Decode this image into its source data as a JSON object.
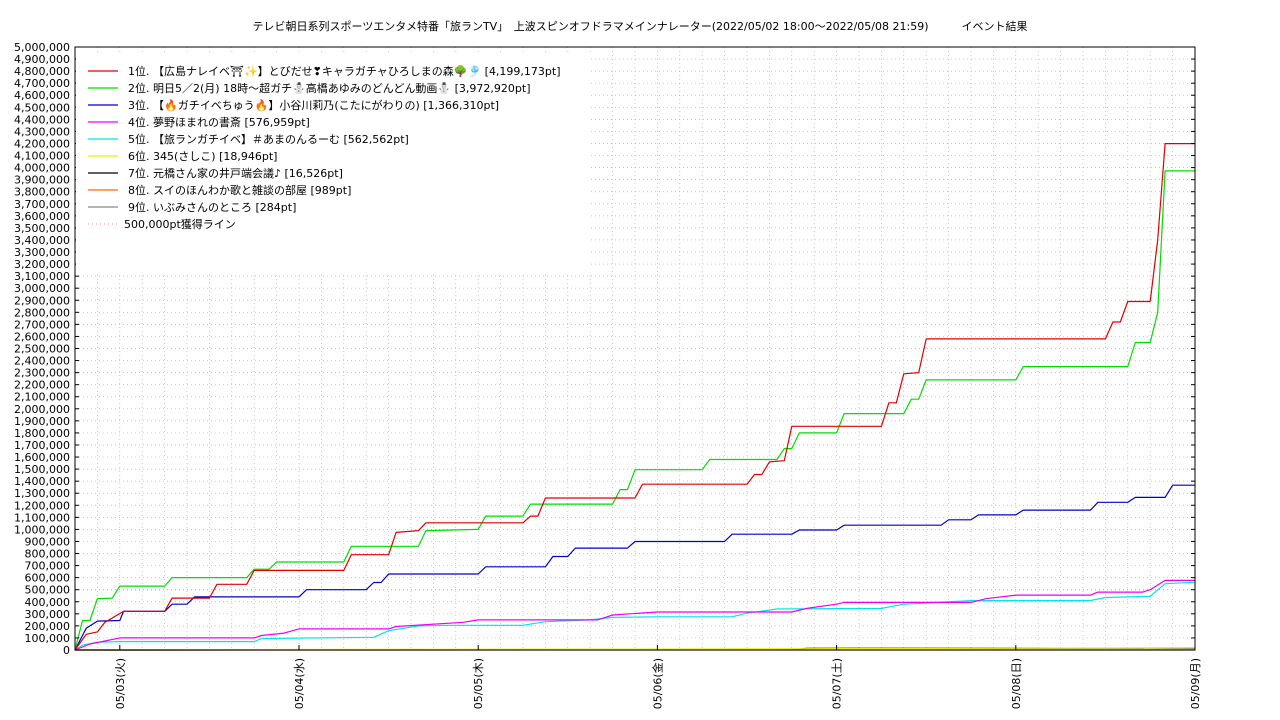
{
  "chart_data": {
    "type": "line",
    "title": "テレビ朝日系列スポーツエンタメ特番「旅ランTV」　上波スピンオフドラマメインナレーター(2022/05/02 18:00〜2022/05/08 21:59)　　　イベント結果",
    "ylim": [
      0,
      5000000
    ],
    "xlim": [
      "2022-05-02 18:00",
      "2022-05-09 00:00"
    ],
    "yticks": [
      0,
      100000,
      200000,
      300000,
      400000,
      500000,
      600000,
      700000,
      800000,
      900000,
      1000000,
      1100000,
      1200000,
      1300000,
      1400000,
      1500000,
      1600000,
      1700000,
      1800000,
      1900000,
      2000000,
      2100000,
      2200000,
      2300000,
      2400000,
      2500000,
      2600000,
      2700000,
      2800000,
      2900000,
      3000000,
      3100000,
      3200000,
      3300000,
      3400000,
      3500000,
      3600000,
      3700000,
      3800000,
      3900000,
      4000000,
      4100000,
      4200000,
      4300000,
      4400000,
      4500000,
      4600000,
      4700000,
      4800000,
      4900000,
      5000000
    ],
    "ytick_labels": [
      "0",
      "100,000",
      "200,000",
      "300,000",
      "400,000",
      "500,000",
      "600,000",
      "700,000",
      "800,000",
      "900,000",
      "1,000,000",
      "1,100,000",
      "1,200,000",
      "1,300,000",
      "1,400,000",
      "1,500,000",
      "1,600,000",
      "1,700,000",
      "1,800,000",
      "1,900,000",
      "2,000,000",
      "2,100,000",
      "2,200,000",
      "2,300,000",
      "2,400,000",
      "2,500,000",
      "2,600,000",
      "2,700,000",
      "2,800,000",
      "2,900,000",
      "3,000,000",
      "3,100,000",
      "3,200,000",
      "3,300,000",
      "3,400,000",
      "3,500,000",
      "3,600,000",
      "3,700,000",
      "3,800,000",
      "3,900,000",
      "4,000,000",
      "4,100,000",
      "4,200,000",
      "4,300,000",
      "4,400,000",
      "4,500,000",
      "4,600,000",
      "4,700,000",
      "4,800,000",
      "4,900,000",
      "5,000,000"
    ],
    "xticks": [
      {
        "label": "05/03(火)",
        "x": "2022-05-03 00:00"
      },
      {
        "label": "05/04(水)",
        "x": "2022-05-04 00:00"
      },
      {
        "label": "05/05(木)",
        "x": "2022-05-05 00:00"
      },
      {
        "label": "05/06(金)",
        "x": "2022-05-06 00:00"
      },
      {
        "label": "05/07(土)",
        "x": "2022-05-07 00:00"
      },
      {
        "label": "05/08(日)",
        "x": "2022-05-08 00:00"
      },
      {
        "label": "05/09(月)",
        "x": "2022-05-09 00:00"
      }
    ],
    "grid": true,
    "legend_position": "top-left",
    "threshold": {
      "name": "500,000pt獲得ライン",
      "value": 500000,
      "color": "#ff8080"
    },
    "series": [
      {
        "name": "1位. 【広島ナレイベ⛩✨】とびだせ❣キャラガチャひろしまの森🌳🎐 [4,199,173pt]",
        "color": "#e00000",
        "points": [
          [
            "2022-05-02 18:00",
            0
          ],
          [
            "2022-05-02 19:30",
            130000
          ],
          [
            "2022-05-02 21:00",
            150000
          ],
          [
            "2022-05-02 22:00",
            230000
          ],
          [
            "2022-05-03 00:30",
            320000
          ],
          [
            "2022-05-03 06:00",
            320000
          ],
          [
            "2022-05-03 07:00",
            430000
          ],
          [
            "2022-05-03 12:00",
            430000
          ],
          [
            "2022-05-03 13:00",
            545000
          ],
          [
            "2022-05-03 17:00",
            545000
          ],
          [
            "2022-05-03 18:00",
            660000
          ],
          [
            "2022-05-04 06:00",
            660000
          ],
          [
            "2022-05-04 07:00",
            790000
          ],
          [
            "2022-05-04 12:00",
            790000
          ],
          [
            "2022-05-04 13:00",
            975000
          ],
          [
            "2022-05-04 16:00",
            990000
          ],
          [
            "2022-05-04 17:00",
            1055000
          ],
          [
            "2022-05-05 06:00",
            1055000
          ],
          [
            "2022-05-05 07:00",
            1110000
          ],
          [
            "2022-05-05 08:00",
            1110000
          ],
          [
            "2022-05-05 09:00",
            1260000
          ],
          [
            "2022-05-05 21:00",
            1260000
          ],
          [
            "2022-05-05 22:00",
            1375000
          ],
          [
            "2022-05-06 12:00",
            1375000
          ],
          [
            "2022-05-06 13:00",
            1455000
          ],
          [
            "2022-05-06 14:00",
            1455000
          ],
          [
            "2022-05-06 15:00",
            1560000
          ],
          [
            "2022-05-06 17:00",
            1570000
          ],
          [
            "2022-05-06 18:00",
            1855000
          ],
          [
            "2022-05-07 06:00",
            1855000
          ],
          [
            "2022-05-07 07:00",
            2050000
          ],
          [
            "2022-05-07 08:00",
            2050000
          ],
          [
            "2022-05-07 09:00",
            2290000
          ],
          [
            "2022-05-07 11:00",
            2300000
          ],
          [
            "2022-05-07 12:00",
            2580000
          ],
          [
            "2022-05-08 12:00",
            2580000
          ],
          [
            "2022-05-08 13:00",
            2720000
          ],
          [
            "2022-05-08 14:00",
            2720000
          ],
          [
            "2022-05-08 15:00",
            2890000
          ],
          [
            "2022-05-08 18:00",
            2890000
          ],
          [
            "2022-05-08 19:00",
            3400000
          ],
          [
            "2022-05-08 20:00",
            4199173
          ],
          [
            "2022-05-09 00:00",
            4199173
          ]
        ]
      },
      {
        "name": "2位. 明日5／2(月) 18時〜超ガチ⛄高橋あゆみのどんどん動画⛄ [3,972,920pt]",
        "color": "#00dd00",
        "points": [
          [
            "2022-05-02 18:00",
            0
          ],
          [
            "2022-05-02 19:00",
            245000
          ],
          [
            "2022-05-02 20:00",
            245000
          ],
          [
            "2022-05-02 21:00",
            425000
          ],
          [
            "2022-05-02 23:00",
            430000
          ],
          [
            "2022-05-03 00:00",
            530000
          ],
          [
            "2022-05-03 06:00",
            530000
          ],
          [
            "2022-05-03 07:00",
            600000
          ],
          [
            "2022-05-03 17:00",
            600000
          ],
          [
            "2022-05-03 18:00",
            670000
          ],
          [
            "2022-05-03 20:00",
            670000
          ],
          [
            "2022-05-03 21:00",
            730000
          ],
          [
            "2022-05-04 06:00",
            730000
          ],
          [
            "2022-05-04 07:00",
            860000
          ],
          [
            "2022-05-04 16:00",
            860000
          ],
          [
            "2022-05-04 17:00",
            990000
          ],
          [
            "2022-05-05 00:00",
            1000000
          ],
          [
            "2022-05-05 01:00",
            1110000
          ],
          [
            "2022-05-05 06:00",
            1110000
          ],
          [
            "2022-05-05 07:00",
            1210000
          ],
          [
            "2022-05-05 18:00",
            1210000
          ],
          [
            "2022-05-05 19:00",
            1330000
          ],
          [
            "2022-05-05 20:00",
            1330000
          ],
          [
            "2022-05-05 21:00",
            1495000
          ],
          [
            "2022-05-06 06:00",
            1495000
          ],
          [
            "2022-05-06 07:00",
            1580000
          ],
          [
            "2022-05-06 16:00",
            1580000
          ],
          [
            "2022-05-06 17:00",
            1670000
          ],
          [
            "2022-05-06 18:00",
            1670000
          ],
          [
            "2022-05-06 19:00",
            1800000
          ],
          [
            "2022-05-07 00:00",
            1800000
          ],
          [
            "2022-05-07 01:00",
            1960000
          ],
          [
            "2022-05-07 09:00",
            1960000
          ],
          [
            "2022-05-07 10:00",
            2080000
          ],
          [
            "2022-05-07 11:00",
            2080000
          ],
          [
            "2022-05-07 12:00",
            2240000
          ],
          [
            "2022-05-08 00:00",
            2240000
          ],
          [
            "2022-05-08 01:00",
            2350000
          ],
          [
            "2022-05-08 15:00",
            2350000
          ],
          [
            "2022-05-08 16:00",
            2550000
          ],
          [
            "2022-05-08 18:00",
            2550000
          ],
          [
            "2022-05-08 19:00",
            2800000
          ],
          [
            "2022-05-08 20:00",
            3972920
          ],
          [
            "2022-05-09 00:00",
            3972920
          ]
        ]
      },
      {
        "name": "3位. 【🔥ガチイベちゅう🔥】小谷川莉乃(こたにがわりの) [1,366,310pt]",
        "color": "#0000cc",
        "points": [
          [
            "2022-05-02 18:00",
            0
          ],
          [
            "2022-05-02 19:30",
            180000
          ],
          [
            "2022-05-02 21:00",
            240000
          ],
          [
            "2022-05-03 00:00",
            245000
          ],
          [
            "2022-05-03 00:30",
            320000
          ],
          [
            "2022-05-03 06:00",
            320000
          ],
          [
            "2022-05-03 07:00",
            380000
          ],
          [
            "2022-05-03 09:00",
            380000
          ],
          [
            "2022-05-03 10:00",
            440000
          ],
          [
            "2022-05-04 00:00",
            440000
          ],
          [
            "2022-05-04 01:00",
            500000
          ],
          [
            "2022-05-04 09:00",
            500000
          ],
          [
            "2022-05-04 10:00",
            560000
          ],
          [
            "2022-05-04 11:00",
            560000
          ],
          [
            "2022-05-04 12:00",
            630000
          ],
          [
            "2022-05-05 00:00",
            630000
          ],
          [
            "2022-05-05 01:00",
            690000
          ],
          [
            "2022-05-05 09:00",
            690000
          ],
          [
            "2022-05-05 10:00",
            775000
          ],
          [
            "2022-05-05 12:00",
            775000
          ],
          [
            "2022-05-05 13:00",
            845000
          ],
          [
            "2022-05-05 20:00",
            845000
          ],
          [
            "2022-05-05 21:00",
            900000
          ],
          [
            "2022-05-06 09:00",
            900000
          ],
          [
            "2022-05-06 10:00",
            960000
          ],
          [
            "2022-05-06 18:00",
            960000
          ],
          [
            "2022-05-06 19:00",
            995000
          ],
          [
            "2022-05-07 00:00",
            995000
          ],
          [
            "2022-05-07 01:00",
            1035000
          ],
          [
            "2022-05-07 14:00",
            1035000
          ],
          [
            "2022-05-07 15:00",
            1080000
          ],
          [
            "2022-05-07 18:00",
            1080000
          ],
          [
            "2022-05-07 19:00",
            1120000
          ],
          [
            "2022-05-08 00:00",
            1120000
          ],
          [
            "2022-05-08 01:00",
            1160000
          ],
          [
            "2022-05-08 10:00",
            1160000
          ],
          [
            "2022-05-08 11:00",
            1225000
          ],
          [
            "2022-05-08 15:00",
            1225000
          ],
          [
            "2022-05-08 16:00",
            1265000
          ],
          [
            "2022-05-08 20:00",
            1265000
          ],
          [
            "2022-05-08 21:00",
            1366310
          ],
          [
            "2022-05-09 00:00",
            1366310
          ]
        ]
      },
      {
        "name": "4位. 夢野ほまれの書斎 [576,959pt]",
        "color": "#ee00ee",
        "points": [
          [
            "2022-05-02 18:00",
            0
          ],
          [
            "2022-05-02 20:00",
            50000
          ],
          [
            "2022-05-02 22:00",
            75000
          ],
          [
            "2022-05-03 00:00",
            100000
          ],
          [
            "2022-05-03 18:00",
            100000
          ],
          [
            "2022-05-03 19:00",
            120000
          ],
          [
            "2022-05-03 22:00",
            140000
          ],
          [
            "2022-05-04 00:00",
            175000
          ],
          [
            "2022-05-04 12:00",
            175000
          ],
          [
            "2022-05-04 13:00",
            195000
          ],
          [
            "2022-05-04 22:00",
            230000
          ],
          [
            "2022-05-05 00:00",
            250000
          ],
          [
            "2022-05-05 16:00",
            250000
          ],
          [
            "2022-05-05 18:00",
            290000
          ],
          [
            "2022-05-06 00:00",
            315000
          ],
          [
            "2022-05-06 18:00",
            315000
          ],
          [
            "2022-05-06 20:00",
            345000
          ],
          [
            "2022-05-07 00:00",
            380000
          ],
          [
            "2022-05-07 01:00",
            395000
          ],
          [
            "2022-05-07 18:00",
            395000
          ],
          [
            "2022-05-07 20:00",
            425000
          ],
          [
            "2022-05-08 00:00",
            455000
          ],
          [
            "2022-05-08 10:00",
            455000
          ],
          [
            "2022-05-08 11:00",
            480000
          ],
          [
            "2022-05-08 17:00",
            480000
          ],
          [
            "2022-05-08 18:00",
            500000
          ],
          [
            "2022-05-08 20:00",
            576959
          ],
          [
            "2022-05-09 00:00",
            576959
          ]
        ]
      },
      {
        "name": "5位. 【旅ランガチイベ】＃あまのんるーむ [562,562pt]",
        "color": "#00e5e5",
        "points": [
          [
            "2022-05-02 18:00",
            0
          ],
          [
            "2022-05-02 19:00",
            40000
          ],
          [
            "2022-05-02 21:00",
            65000
          ],
          [
            "2022-05-03 00:00",
            70000
          ],
          [
            "2022-05-03 18:00",
            70000
          ],
          [
            "2022-05-03 19:00",
            95000
          ],
          [
            "2022-05-04 10:00",
            105000
          ],
          [
            "2022-05-04 12:00",
            160000
          ],
          [
            "2022-05-04 16:00",
            200000
          ],
          [
            "2022-05-04 20:00",
            205000
          ],
          [
            "2022-05-05 06:00",
            205000
          ],
          [
            "2022-05-05 09:00",
            235000
          ],
          [
            "2022-05-05 15:00",
            250000
          ],
          [
            "2022-05-05 18:00",
            270000
          ],
          [
            "2022-05-06 00:00",
            275000
          ],
          [
            "2022-05-06 10:00",
            275000
          ],
          [
            "2022-05-06 12:00",
            305000
          ],
          [
            "2022-05-06 16:00",
            340000
          ],
          [
            "2022-05-07 06:00",
            345000
          ],
          [
            "2022-05-07 09:00",
            380000
          ],
          [
            "2022-05-07 18:00",
            410000
          ],
          [
            "2022-05-08 10:00",
            410000
          ],
          [
            "2022-05-08 12:00",
            435000
          ],
          [
            "2022-05-08 18:00",
            445000
          ],
          [
            "2022-05-08 20:00",
            550000
          ],
          [
            "2022-05-09 00:00",
            562562
          ]
        ]
      },
      {
        "name": "6位. 345(さしこ) [18,946pt]",
        "color": "#eeee00",
        "points": [
          [
            "2022-05-02 18:00",
            0
          ],
          [
            "2022-05-04 00:00",
            4000
          ],
          [
            "2022-05-06 12:00",
            9000
          ],
          [
            "2022-05-09 00:00",
            18946
          ]
        ]
      },
      {
        "name": "7位. 元橋さん家の井戸端会議♪ [16,526pt]",
        "color": "#000000",
        "points": [
          [
            "2022-05-02 18:00",
            0
          ],
          [
            "2022-05-06 18:00",
            2000
          ],
          [
            "2022-05-06 20:00",
            14000
          ],
          [
            "2022-05-09 00:00",
            16526
          ]
        ]
      },
      {
        "name": "8位. スイのほんわか歌と雑談の部屋 [989pt]",
        "color": "#ff6600",
        "points": [
          [
            "2022-05-02 18:00",
            0
          ],
          [
            "2022-05-09 00:00",
            989
          ]
        ]
      },
      {
        "name": "9位. いぶみさんのところ [284pt]",
        "color": "#888888",
        "points": [
          [
            "2022-05-02 18:00",
            0
          ],
          [
            "2022-05-09 00:00",
            284
          ]
        ]
      }
    ]
  }
}
